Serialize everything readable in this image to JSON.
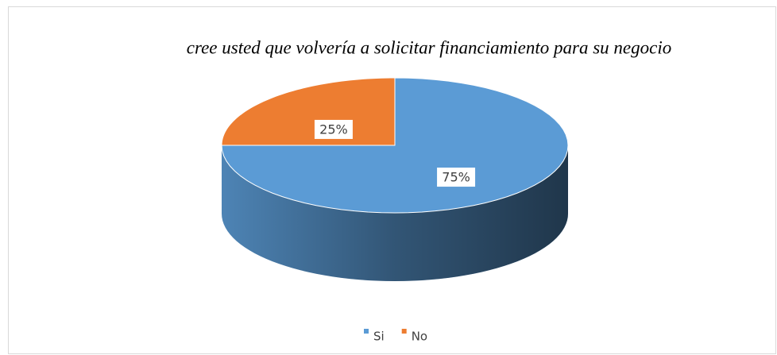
{
  "chart_data": {
    "type": "pie3d",
    "title": "cree usted que volvería a solicitar financiamiento para su negocio",
    "categories": [
      "Si",
      "No"
    ],
    "values": [
      75,
      25
    ],
    "value_labels": [
      "75%",
      "25%"
    ],
    "colors": [
      "#5b9bd5",
      "#ed7d31"
    ],
    "legend": "bottom"
  }
}
